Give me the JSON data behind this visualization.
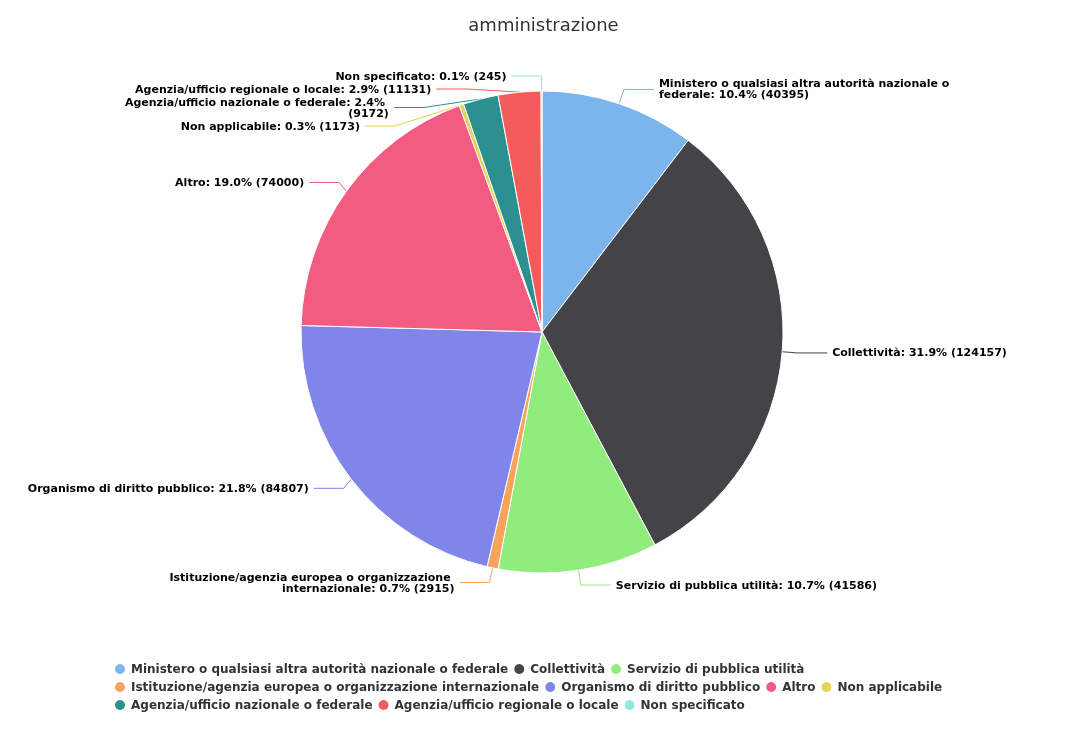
{
  "chart_data": {
    "type": "pie",
    "title": "amministrazione",
    "categories": [
      "Ministero o qualsiasi altra autorità nazionale o federale",
      "Collettività",
      "Servizio di pubblica utilità",
      "Istituzione/agenzia europea o organizzazione internazionale",
      "Organismo di diritto pubblico",
      "Altro",
      "Non applicabile",
      "Agenzia/ufficio nazionale o federale",
      "Agenzia/ufficio regionale o locale",
      "Non specificato"
    ],
    "values": [
      40395,
      124157,
      41586,
      2915,
      84807,
      74000,
      1173,
      9172,
      11131,
      245
    ],
    "value_labels": [
      ": 10.4% (40395)",
      ": 31.9% (124157)",
      ": 10.7% (41586)",
      ": 0.7% (2915)",
      ": 21.8% (84807)",
      ": 19.0% (74000)",
      ": 0.3% (1173)",
      ": 2.4% (9172)",
      ": 2.9% (11131)",
      ": 0.1% (245)"
    ],
    "colors": [
      "#7cb5ec",
      "#434348",
      "#90ed7d",
      "#f7a35c",
      "#8085e9",
      "#f15c80",
      "#e4d354",
      "#2b908f",
      "#f45b5b",
      "#91e8e1"
    ],
    "data_labels": true,
    "legend": "bottom"
  }
}
